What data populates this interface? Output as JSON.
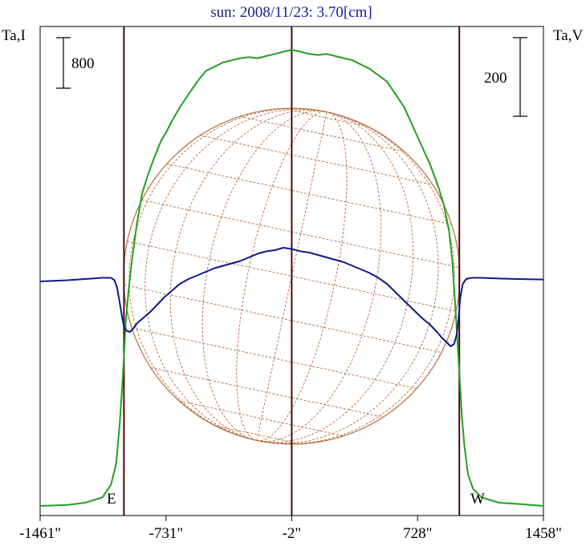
{
  "chart_data": {
    "type": "line",
    "title": "sun: 2008/11/23: 3.70[cm]",
    "left_axis_label": "Ta,I",
    "right_axis_label": "Ta,V",
    "left_scale_bar": "800",
    "right_scale_bar": "200",
    "x_tick_labels": [
      "-1461\"",
      "-731\"",
      "-2\"",
      "728\"",
      "1458\""
    ],
    "x_ticks": [
      -1461,
      -731,
      -2,
      728,
      1458
    ],
    "xlim": [
      -1461,
      1458
    ],
    "limb_markers": [
      -975,
      970
    ],
    "limb_labels": [
      "E",
      "W"
    ],
    "center_line": -2,
    "disk_center": -2,
    "disk_radius": 975,
    "grid": false,
    "series": [
      {
        "color": "#22a022",
        "x": [
          -1461,
          -1300,
          -1200,
          -1100,
          -1050,
          -1020,
          -1000,
          -985,
          -975,
          -965,
          -950,
          -930,
          -900,
          -870,
          -840,
          -800,
          -760,
          -730,
          -700,
          -650,
          -600,
          -550,
          -500,
          -450,
          -400,
          -350,
          -300,
          -250,
          -200,
          -150,
          -100,
          -50,
          -2,
          50,
          100,
          150,
          200,
          250,
          300,
          350,
          400,
          450,
          500,
          550,
          600,
          650,
          700,
          750,
          800,
          850,
          880,
          910,
          930,
          950,
          965,
          975,
          985,
          1000,
          1020,
          1050,
          1100,
          1200,
          1300,
          1458
        ],
        "values": [
          0,
          5,
          15,
          40,
          100,
          200,
          380,
          560,
          700,
          860,
          1000,
          1150,
          1330,
          1470,
          1550,
          1640,
          1720,
          1760,
          1810,
          1880,
          1940,
          2000,
          2050,
          2070,
          2090,
          2100,
          2110,
          2115,
          2110,
          2120,
          2130,
          2140,
          2150,
          2140,
          2130,
          2125,
          2130,
          2120,
          2110,
          2100,
          2080,
          2060,
          2030,
          2000,
          1940,
          1880,
          1790,
          1700,
          1610,
          1500,
          1420,
          1300,
          1150,
          900,
          700,
          560,
          420,
          280,
          150,
          80,
          40,
          15,
          10,
          0
        ]
      },
      {
        "color": "#0a1a8c",
        "x": [
          -1461,
          -1300,
          -1200,
          -1100,
          -1050,
          -1030,
          -1015,
          -1000,
          -985,
          -975,
          -960,
          -940,
          -920,
          -900,
          -860,
          -820,
          -780,
          -740,
          -700,
          -650,
          -600,
          -550,
          -500,
          -450,
          -400,
          -350,
          -300,
          -250,
          -200,
          -150,
          -100,
          -50,
          -2,
          50,
          100,
          150,
          200,
          250,
          300,
          350,
          400,
          450,
          500,
          550,
          600,
          650,
          700,
          750,
          800,
          840,
          870,
          900,
          920,
          940,
          955,
          965,
          975,
          990,
          1010,
          1040,
          1100,
          1200,
          1300,
          1458
        ],
        "values": [
          0,
          5,
          10,
          15,
          15,
          5,
          -25,
          -85,
          -150,
          -185,
          -205,
          -210,
          -195,
          -175,
          -150,
          -125,
          -95,
          -65,
          -40,
          -10,
          10,
          25,
          40,
          55,
          65,
          75,
          85,
          100,
          115,
          125,
          130,
          140,
          135,
          125,
          120,
          110,
          100,
          90,
          80,
          65,
          50,
          35,
          15,
          -10,
          -45,
          -80,
          -115,
          -150,
          -180,
          -210,
          -235,
          -255,
          -270,
          -260,
          -220,
          -160,
          -70,
          -10,
          10,
          15,
          15,
          12,
          10,
          8
        ]
      }
    ]
  }
}
